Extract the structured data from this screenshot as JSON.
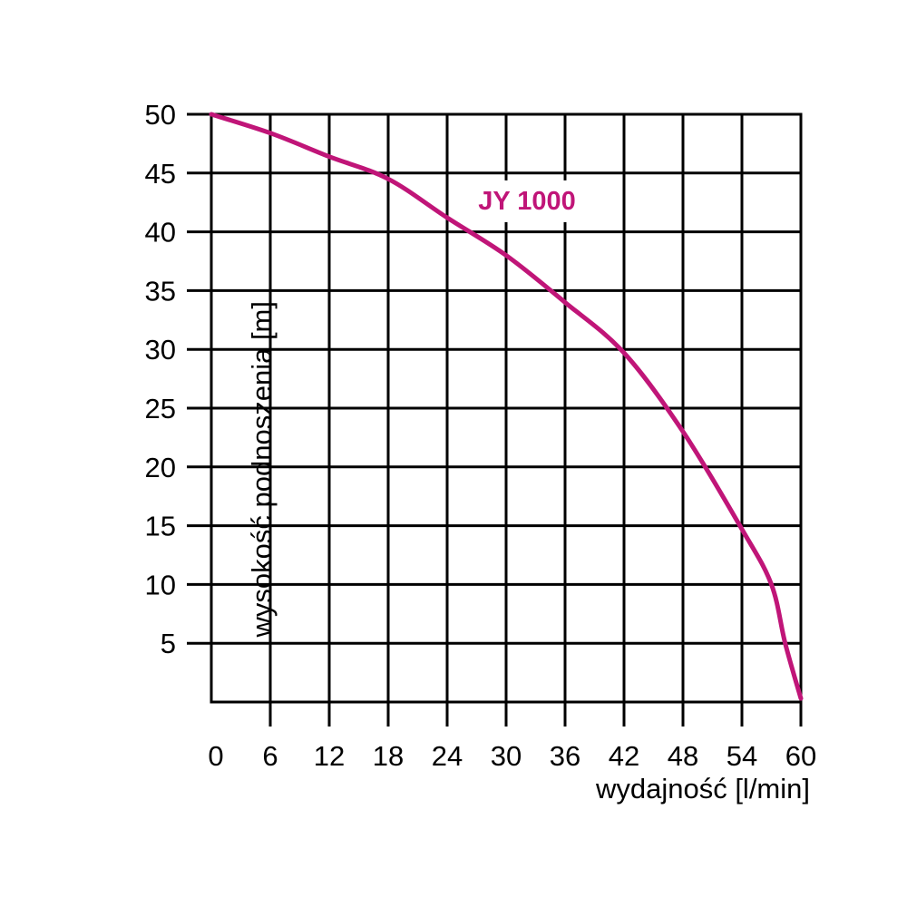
{
  "chart_data": {
    "type": "line",
    "title": "JY 1000",
    "xlabel": "wydajność [l/min]",
    "ylabel": "wysokość podnoszenia [m]",
    "xlim": [
      0,
      60
    ],
    "ylim": [
      0,
      50
    ],
    "x_ticks": [
      0,
      6,
      12,
      18,
      24,
      30,
      36,
      42,
      48,
      54,
      60
    ],
    "y_ticks": [
      5,
      10,
      15,
      20,
      25,
      30,
      35,
      40,
      45,
      50
    ],
    "grid": true,
    "legend": false,
    "colors": {
      "curve": "#c01578",
      "grid": "#000000",
      "text": "#000000",
      "background": "#ffffff"
    },
    "series": [
      {
        "name": "JY 1000",
        "x": [
          0,
          6,
          12,
          18,
          24,
          30,
          36,
          42,
          48,
          54,
          57,
          58.4,
          60
        ],
        "y": [
          50,
          48.4,
          46.4,
          44.5,
          41.2,
          38.0,
          34.0,
          29.7,
          23.0,
          14.7,
          10.0,
          5.0,
          0.3
        ],
        "color": "#c01578"
      }
    ],
    "annotation": {
      "text": "JY 1000",
      "x": 32.1,
      "y": 42.6,
      "color": "#c01578"
    }
  }
}
